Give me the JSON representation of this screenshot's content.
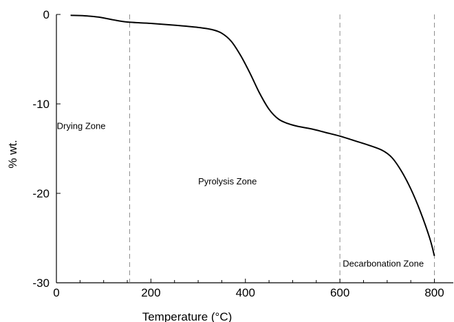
{
  "chart_data": {
    "type": "line",
    "title": "",
    "xlabel": "Temperature (°C)",
    "ylabel": "% wt.",
    "xlim": [
      0,
      840
    ],
    "ylim": [
      -30,
      0
    ],
    "x_ticks": [
      0,
      200,
      400,
      600,
      800
    ],
    "y_ticks": [
      0,
      -10,
      -20,
      -30
    ],
    "x_tick_labels": [
      "0",
      "200",
      "400",
      "600",
      "800"
    ],
    "y_tick_labels": [
      "0",
      "-10",
      "-20",
      "-30"
    ],
    "grid": false,
    "legend": "none",
    "series": [
      {
        "color": "#000000",
        "x": [
          30,
          60,
          90,
          120,
          150,
          200,
          250,
          300,
          330,
          350,
          370,
          390,
          410,
          430,
          450,
          470,
          490,
          510,
          540,
          570,
          600,
          630,
          660,
          690,
          710,
          730,
          750,
          770,
          790,
          800
        ],
        "y": [
          -0.1,
          -0.15,
          -0.3,
          -0.6,
          -0.85,
          -1.0,
          -1.2,
          -1.45,
          -1.7,
          -2.1,
          -3.0,
          -4.6,
          -6.6,
          -8.8,
          -10.6,
          -11.7,
          -12.2,
          -12.5,
          -12.8,
          -13.2,
          -13.6,
          -14.1,
          -14.6,
          -15.2,
          -16.0,
          -17.5,
          -19.5,
          -22.0,
          -25.0,
          -27.0
        ]
      }
    ],
    "reference_lines": {
      "x": [
        155,
        600,
        800
      ],
      "style": "dashed",
      "color": "#8c8c8c"
    },
    "annotations": [
      {
        "text": "Drying Zone",
        "x": 1,
        "y": -12.8
      },
      {
        "text": "Pyrolysis Zone",
        "x": 300,
        "y": -19
      },
      {
        "text": "Decarbonation Zone",
        "x": 606,
        "y": -28.2
      }
    ]
  }
}
